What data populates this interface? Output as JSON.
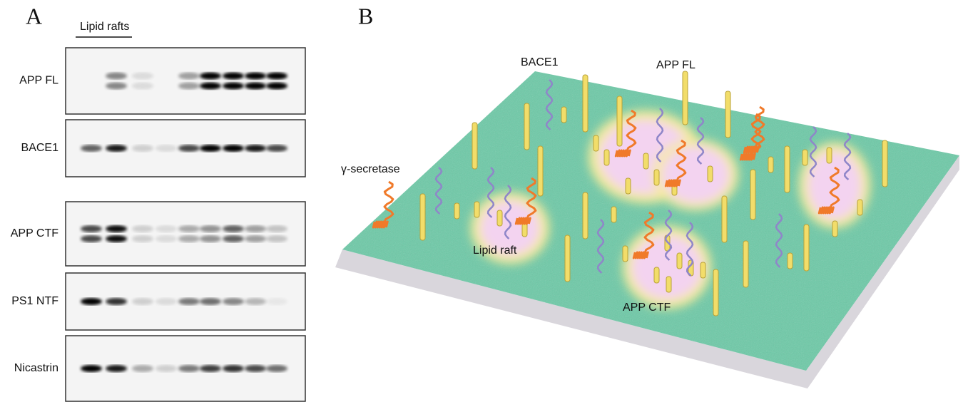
{
  "panel_a": {
    "label": "A",
    "lipid_rafts": "Lipid rafts",
    "blots": [
      "APP FL",
      "BACE1",
      "APP CTF",
      "PS1 NTF",
      "Nicastrin"
    ]
  },
  "panel_b": {
    "label": "B",
    "labels": {
      "bace1": "BACE1",
      "app_fl": "APP FL",
      "gamma_secretase": "γ-secretase",
      "lipid_raft": "Lipid raft",
      "app_ctf": "APP CTF"
    }
  }
}
